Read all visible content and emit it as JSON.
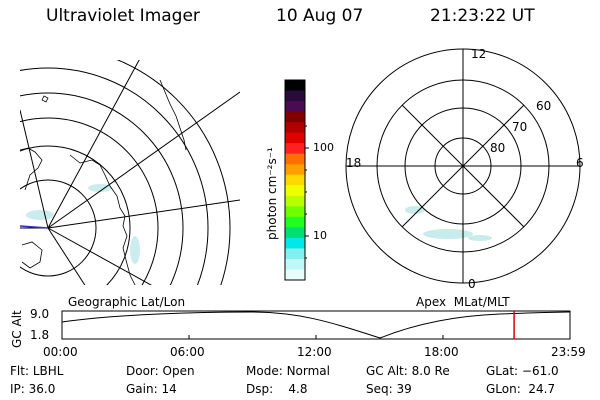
{
  "header": {
    "title": "Ultraviolet Imager",
    "date": "10 Aug 07",
    "time": "21:23:22 UT"
  },
  "colorbar": {
    "label": "photon cm⁻²s⁻¹",
    "ticks": [
      "100",
      "10"
    ],
    "colors": [
      "#000000",
      "#2a0a3a",
      "#4b0a55",
      "#800000",
      "#b00000",
      "#e00000",
      "#ff2020",
      "#ff7000",
      "#ffa000",
      "#ffd800",
      "#f0ff00",
      "#b8ff00",
      "#70ff00",
      "#20ff20",
      "#00e070",
      "#00e8e8",
      "#80f0f0",
      "#c0f8f8",
      "#e8fcfc"
    ]
  },
  "left_map": {
    "label": "Geographic Lat/Lon"
  },
  "right_map": {
    "label": "Apex  MLat/MLT",
    "mlt_labels": {
      "top": "12",
      "bottom": "0",
      "left": "18",
      "right": "6"
    },
    "lat_labels": [
      "60",
      "70",
      "80"
    ]
  },
  "altitude_plot": {
    "ylabel": "GC Alt",
    "yticks": [
      "9.0",
      "1.8"
    ],
    "xticks": [
      "00:00",
      "06:00",
      "12:00",
      "18:00",
      "23:59"
    ],
    "marker_color": "#e00000",
    "marker_time_fraction": 0.89
  },
  "status": {
    "row1": [
      {
        "label": "Flt:",
        "value": "LBHL"
      },
      {
        "label": "Door:",
        "value": "Open"
      },
      {
        "label": "Mode:",
        "value": "Normal"
      },
      {
        "label": "GC Alt:",
        "value": "8.0 Re"
      },
      {
        "label": "GLat:",
        "value": "−61.0"
      }
    ],
    "row2": [
      {
        "label": "IP:",
        "value": "36.0"
      },
      {
        "label": "Gain:",
        "value": "14"
      },
      {
        "label": "Dsp:",
        "value": "4.8"
      },
      {
        "label": "Seq:",
        "value": "39"
      },
      {
        "label": "GLon:",
        "value": "24.7"
      }
    ]
  }
}
